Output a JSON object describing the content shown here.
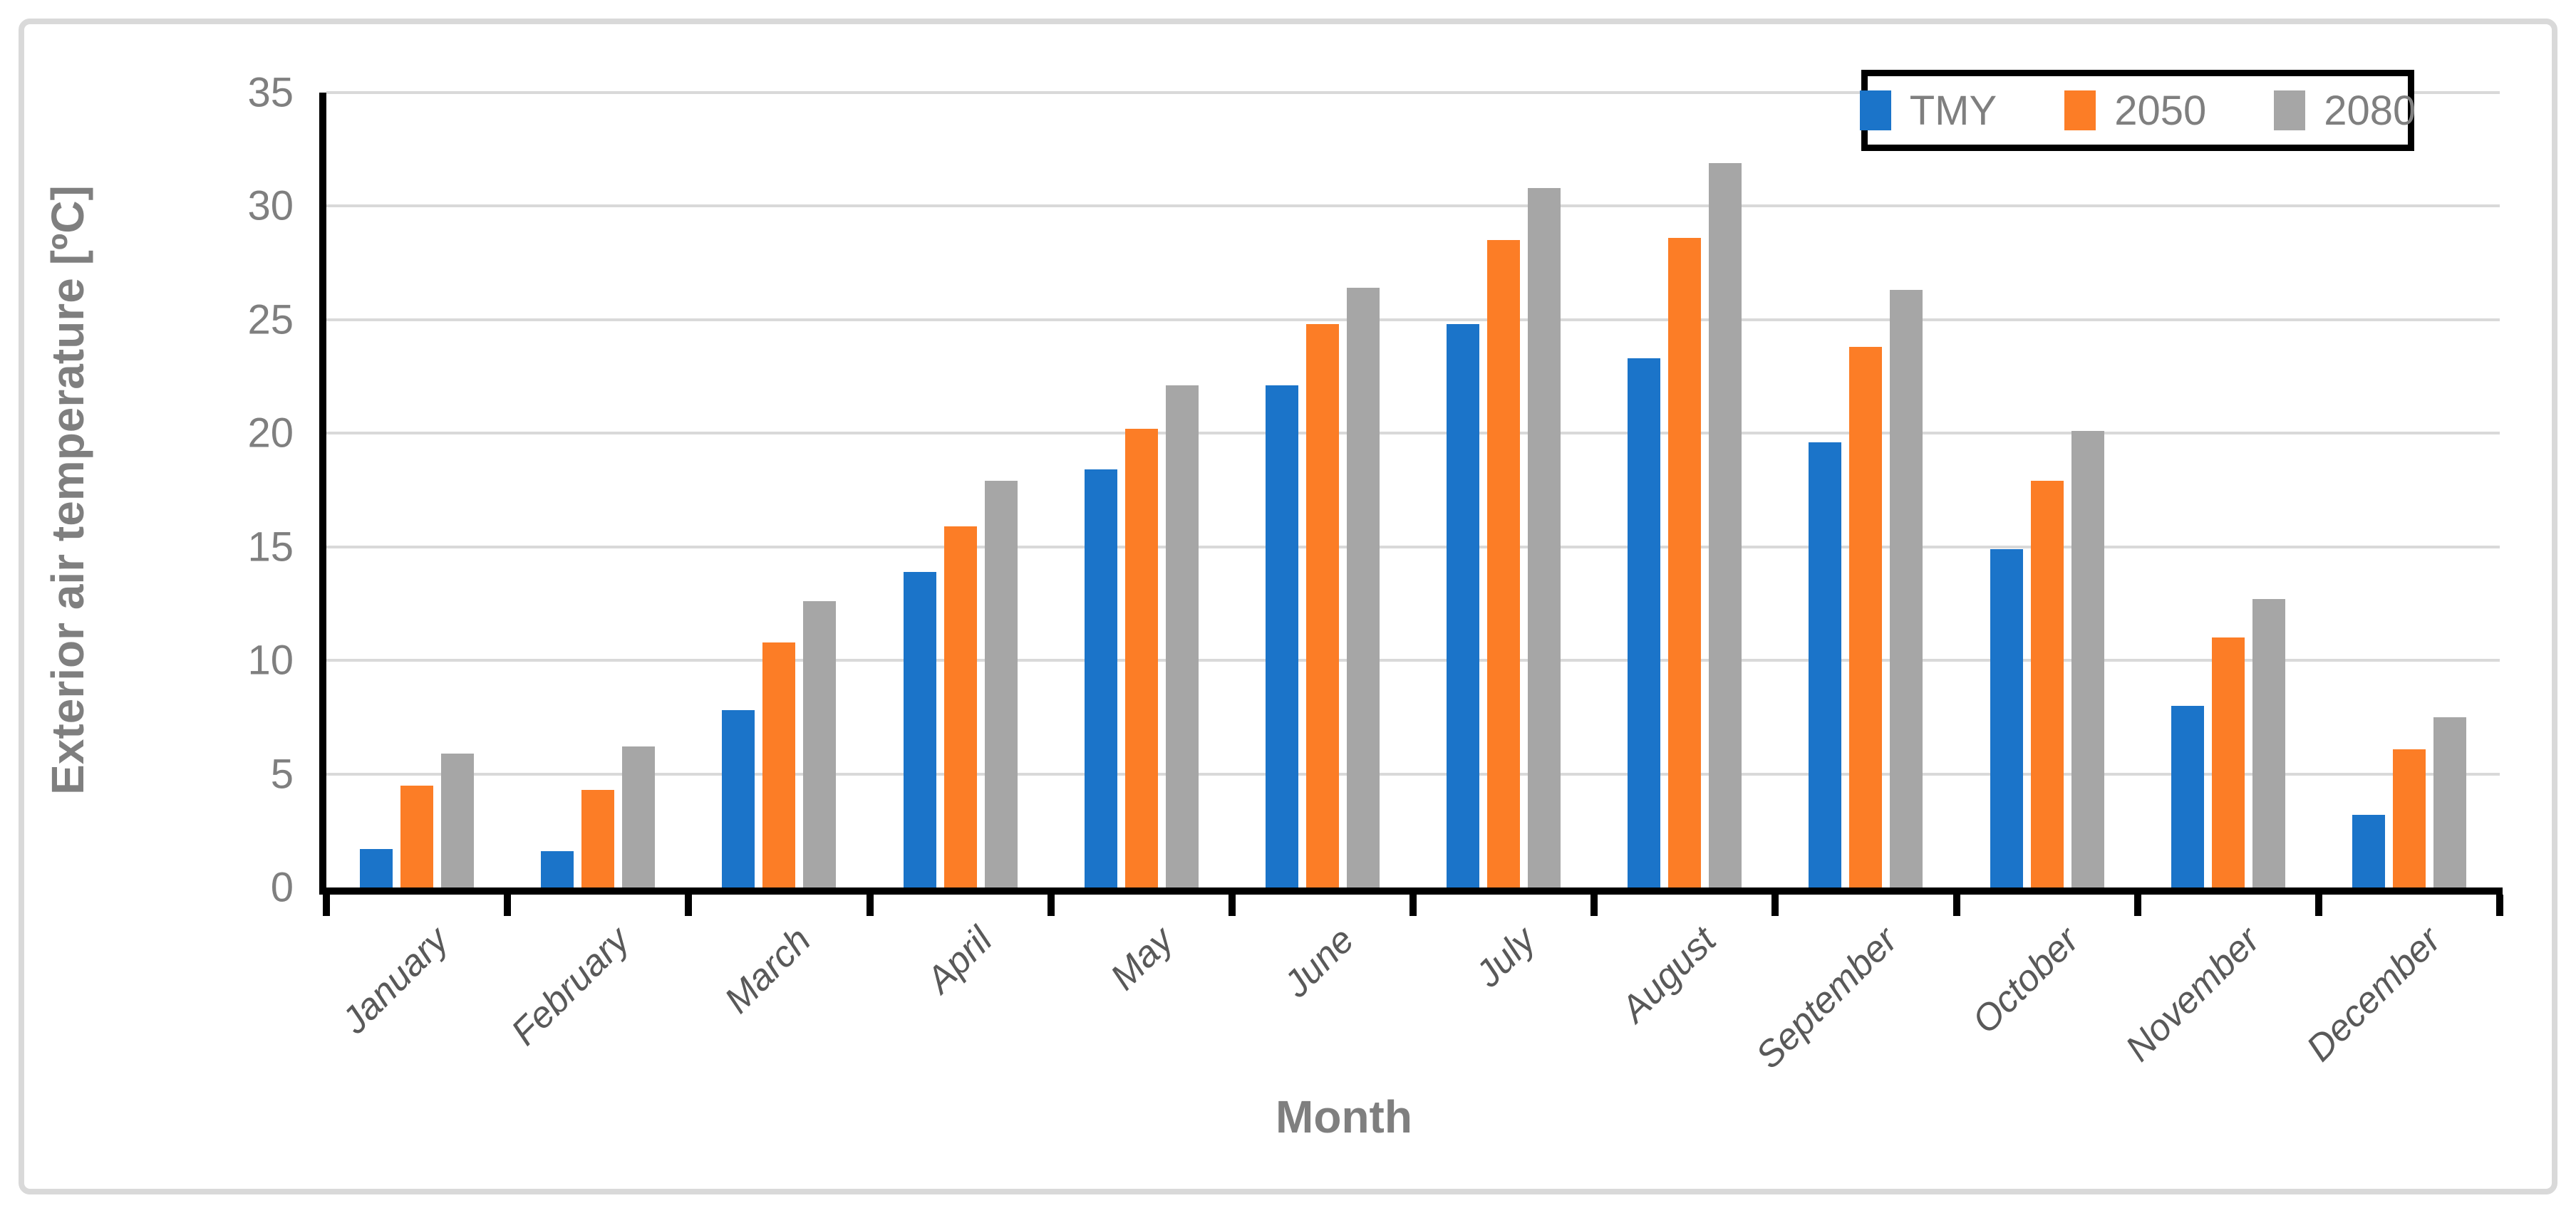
{
  "figure": {
    "border_color": "#D9D9D9",
    "background": "#FFFFFF"
  },
  "axes": {
    "y_title": "Exterior air temperature [ºC]",
    "x_title": "Month",
    "y_tick_labels": [
      "0",
      "5",
      "10",
      "15",
      "20",
      "25",
      "30",
      "35"
    ],
    "y_tick_label_color": "#7F7F7F",
    "x_tick_label_color": "#595959",
    "axis_line_color": "#000000",
    "gridline_color": "#D9D9D9"
  },
  "legend": {
    "position": "top-right",
    "border_color": "#000000",
    "text_color": "#7F7F7F",
    "items": [
      {
        "label": "TMY",
        "color": "#1B74C9"
      },
      {
        "label": "2050",
        "color": "#FC7D26"
      },
      {
        "label": "2080",
        "color": "#A6A6A6"
      }
    ]
  },
  "chart_data": {
    "type": "bar",
    "title": "",
    "categories": [
      "January",
      "February",
      "March",
      "April",
      "May",
      "June",
      "July",
      "August",
      "September",
      "October",
      "November",
      "December"
    ],
    "series": [
      {
        "name": "TMY",
        "color": "#1B74C9",
        "values": [
          1.7,
          1.6,
          7.8,
          13.9,
          18.4,
          22.1,
          24.8,
          23.3,
          19.6,
          14.9,
          8.0,
          3.2
        ]
      },
      {
        "name": "2050",
        "color": "#FC7D26",
        "values": [
          4.5,
          4.3,
          10.8,
          15.9,
          20.2,
          24.8,
          28.5,
          28.6,
          23.8,
          17.9,
          11.0,
          6.1
        ]
      },
      {
        "name": "2080",
        "color": "#A6A6A6",
        "values": [
          5.9,
          6.2,
          12.6,
          17.9,
          22.1,
          26.4,
          30.8,
          31.9,
          26.3,
          20.1,
          12.7,
          7.5
        ]
      }
    ],
    "xlabel": "Month",
    "ylabel": "Exterior air temperature [ºC]",
    "ylim": [
      0,
      35
    ],
    "ytick_step": 5,
    "grid": true,
    "legend_position": "top-right"
  }
}
